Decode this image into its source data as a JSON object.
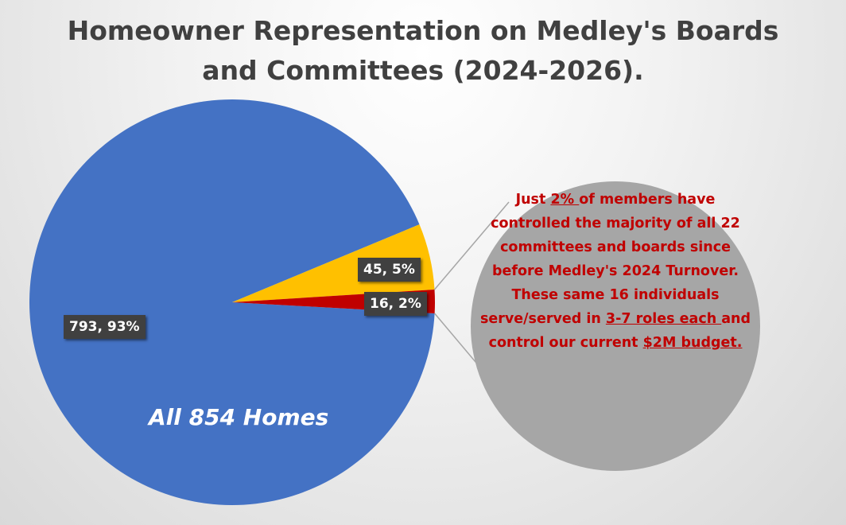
{
  "title": {
    "line1": "Homeowner Representation on Medley's Boards",
    "line2": "and Committees (2024-2026)."
  },
  "colors": {
    "all_homes": "#4472c4",
    "yellow_slice": "#ffc000",
    "red_slice": "#c00000",
    "callout_circle": "#a6a6a6",
    "callout_text": "#c00000",
    "label_bg": "#404040"
  },
  "chart_data": {
    "type": "pie",
    "title": "Homeowner Representation on Medley's Boards and Committees (2024-2026).",
    "slices": [
      {
        "value": 793,
        "percent": "93%",
        "label": "793, 93%",
        "color": "#4472c4"
      },
      {
        "value": 45,
        "percent": "5%",
        "label": "45, 5%",
        "color": "#ffc000"
      },
      {
        "value": 16,
        "percent": "2%",
        "label": "16, 2%",
        "color": "#c00000"
      }
    ],
    "annotation": "All 854 Homes"
  },
  "callout": {
    "t1": "Just ",
    "u1": "2% ",
    "t2": "of members have controlled the majority of all 22 committees and boards since before Medley's 2024 Turnover. These same 16 individuals serve/served in ",
    "u2": "3-7 roles each ",
    "t3": "and control our current ",
    "u3": "$2M budget."
  }
}
